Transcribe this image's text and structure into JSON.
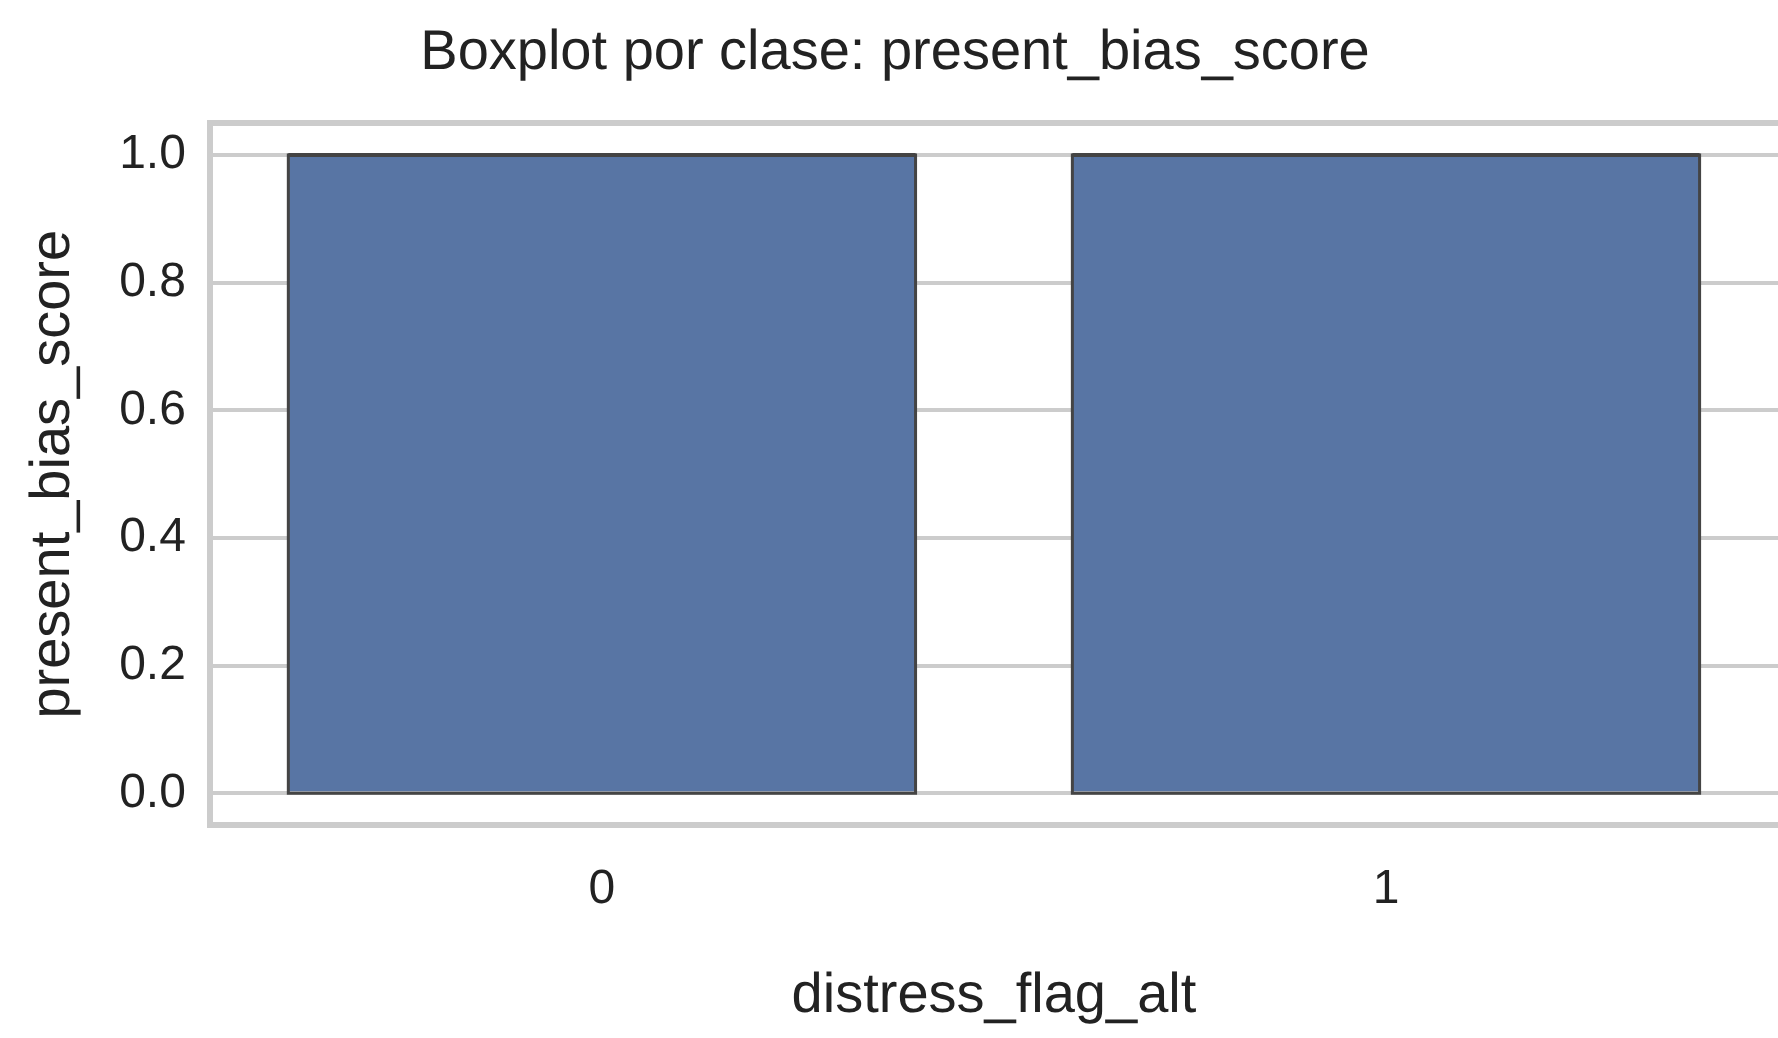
{
  "chart_data": {
    "type": "box",
    "title": "Boxplot por clase: present_bias_score",
    "xlabel": "distress_flag_alt",
    "ylabel": "present_bias_score",
    "categories": [
      "0",
      "1"
    ],
    "boxes": [
      {
        "low": 0,
        "q1": 0,
        "median": 1,
        "q3": 1,
        "high": 1
      },
      {
        "low": 0,
        "q1": 0,
        "median": 1,
        "q3": 1,
        "high": 1
      }
    ],
    "color": "#5875a4",
    "ylim": [
      -0.05,
      1.05
    ],
    "yticks": [
      {
        "value": 0,
        "label": "0.0"
      },
      {
        "value": 0.2,
        "label": "0.2"
      },
      {
        "value": 0.4,
        "label": "0.4"
      },
      {
        "value": 0.6,
        "label": "0.6"
      },
      {
        "value": 0.8,
        "label": "0.8"
      },
      {
        "value": 1,
        "label": "1.0"
      }
    ],
    "grid": "y",
    "legend": false
  }
}
